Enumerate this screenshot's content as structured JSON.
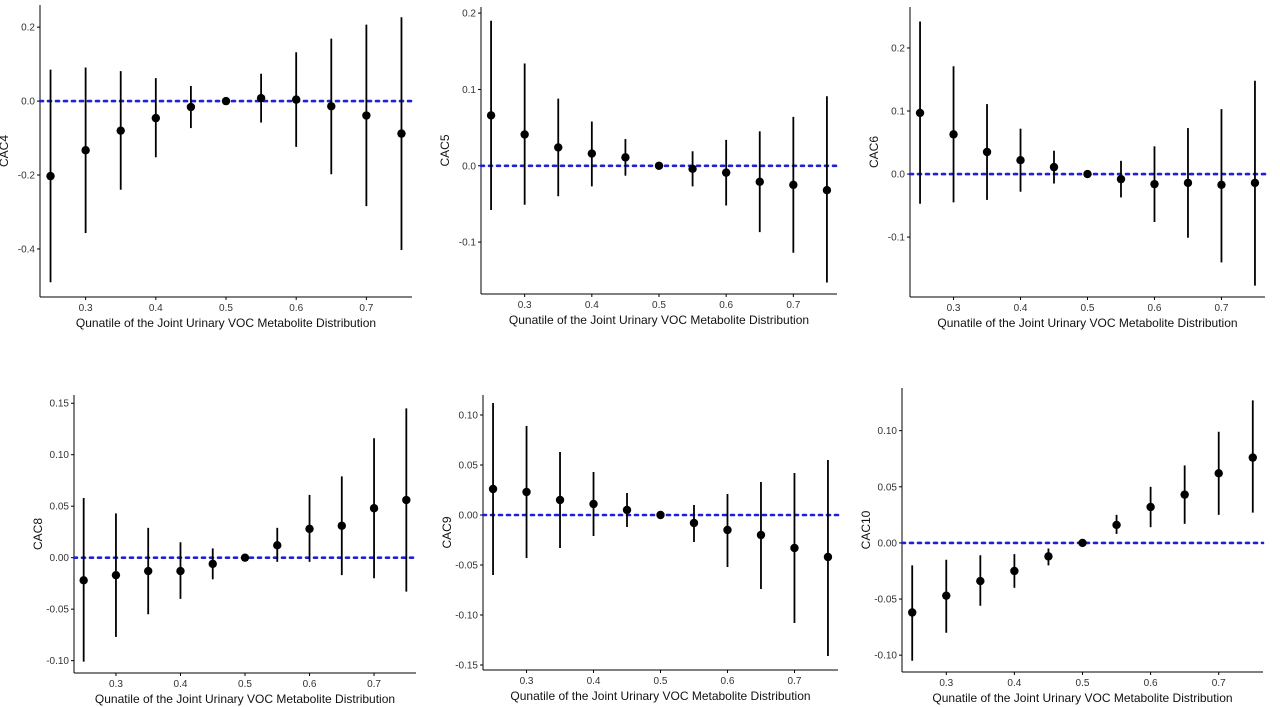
{
  "chart_data": [
    {
      "type": "scatter",
      "ylabel": "CAC4",
      "xlabel": "Qunatile of the Joint Urinary VOC Metabolite Distribution",
      "xlim": [
        0.235,
        0.765
      ],
      "ylim": [
        -0.53,
        0.26
      ],
      "xticks": [
        "0.3",
        "0.4",
        "0.5",
        "0.6",
        "0.7"
      ],
      "yticks": [
        "0.2",
        "0.0",
        "-0.2",
        "-0.4"
      ],
      "reference_line_y": 0,
      "x": [
        0.25,
        0.3,
        0.35,
        0.4,
        0.45,
        0.5,
        0.55,
        0.6,
        0.65,
        0.7,
        0.75
      ],
      "y": [
        -0.203,
        -0.133,
        -0.08,
        -0.046,
        -0.016,
        0.0,
        0.008,
        0.004,
        -0.014,
        -0.039,
        -0.088
      ],
      "lower": [
        -0.49,
        -0.357,
        -0.24,
        -0.152,
        -0.073,
        0.0,
        -0.058,
        -0.124,
        -0.198,
        -0.284,
        -0.403
      ],
      "upper": [
        0.085,
        0.091,
        0.081,
        0.062,
        0.041,
        0.0,
        0.074,
        0.132,
        0.169,
        0.207,
        0.227
      ]
    },
    {
      "type": "scatter",
      "ylabel": "CAC5",
      "xlabel": "Qunatile of the Joint Urinary VOC Metabolite Distribution",
      "xlim": [
        0.235,
        0.765
      ],
      "ylim": [
        -0.168,
        0.208
      ],
      "xticks": [
        "0.3",
        "0.4",
        "0.5",
        "0.6",
        "0.7"
      ],
      "yticks": [
        "0.2",
        "0.1",
        "0.0",
        "-0.1"
      ],
      "reference_line_y": 0,
      "x": [
        0.25,
        0.3,
        0.35,
        0.4,
        0.45,
        0.5,
        0.55,
        0.6,
        0.65,
        0.7,
        0.75
      ],
      "y": [
        0.066,
        0.041,
        0.024,
        0.016,
        0.011,
        0.0,
        -0.004,
        -0.009,
        -0.021,
        -0.025,
        -0.032
      ],
      "lower": [
        -0.058,
        -0.051,
        -0.04,
        -0.027,
        -0.013,
        0.0,
        -0.027,
        -0.052,
        -0.087,
        -0.114,
        -0.153
      ],
      "upper": [
        0.19,
        0.134,
        0.088,
        0.058,
        0.035,
        0.0,
        0.019,
        0.034,
        0.045,
        0.064,
        0.091
      ]
    },
    {
      "type": "scatter",
      "ylabel": "CAC6",
      "xlabel": "Qunatile of the Joint Urinary VOC Metabolite Distribution",
      "xlim": [
        0.235,
        0.765
      ],
      "ylim": [
        -0.195,
        0.265
      ],
      "xticks": [
        "0.3",
        "0.4",
        "0.5",
        "0.6",
        "0.7"
      ],
      "yticks": [
        "0.2",
        "0.1",
        "0.0",
        "-0.1"
      ],
      "reference_line_y": 0,
      "x": [
        0.25,
        0.3,
        0.35,
        0.4,
        0.45,
        0.5,
        0.55,
        0.6,
        0.65,
        0.7,
        0.75
      ],
      "y": [
        0.097,
        0.063,
        0.035,
        0.022,
        0.011,
        0.0,
        -0.008,
        -0.016,
        -0.014,
        -0.017,
        -0.014
      ],
      "lower": [
        -0.047,
        -0.045,
        -0.041,
        -0.028,
        -0.015,
        0.0,
        -0.037,
        -0.076,
        -0.101,
        -0.14,
        -0.177
      ],
      "upper": [
        0.242,
        0.171,
        0.111,
        0.072,
        0.037,
        0.0,
        0.021,
        0.044,
        0.073,
        0.103,
        0.148
      ]
    },
    {
      "type": "scatter",
      "ylabel": "CAC8",
      "xlabel": "Qunatile of the Joint Urinary VOC Metabolite Distribution",
      "xlim": [
        0.235,
        0.765
      ],
      "ylim": [
        -0.112,
        0.158
      ],
      "xticks": [
        "0.3",
        "0.4",
        "0.5",
        "0.6",
        "0.7"
      ],
      "yticks": [
        "0.15",
        "0.10",
        "0.05",
        "0.00",
        "-0.05",
        "-0.10"
      ],
      "reference_line_y": 0,
      "x": [
        0.25,
        0.3,
        0.35,
        0.4,
        0.45,
        0.5,
        0.55,
        0.6,
        0.65,
        0.7,
        0.75
      ],
      "y": [
        -0.022,
        -0.017,
        -0.013,
        -0.013,
        -0.006,
        0.0,
        0.012,
        0.028,
        0.031,
        0.048,
        0.056
      ],
      "lower": [
        -0.101,
        -0.077,
        -0.055,
        -0.04,
        -0.021,
        0.0,
        -0.004,
        -0.004,
        -0.017,
        -0.02,
        -0.033
      ],
      "upper": [
        0.058,
        0.043,
        0.029,
        0.015,
        0.009,
        0.0,
        0.029,
        0.061,
        0.079,
        0.116,
        0.145
      ]
    },
    {
      "type": "scatter",
      "ylabel": "CAC9",
      "xlabel": "Qunatile of the Joint Urinary VOC Metabolite Distribution",
      "xlim": [
        0.235,
        0.765
      ],
      "ylim": [
        -0.155,
        0.12
      ],
      "xticks": [
        "0.3",
        "0.4",
        "0.5",
        "0.6",
        "0.7"
      ],
      "yticks": [
        "0.10",
        "0.05",
        "0.00",
        "-0.05",
        "-0.10",
        "-0.15"
      ],
      "reference_line_y": 0,
      "x": [
        0.25,
        0.3,
        0.35,
        0.4,
        0.45,
        0.5,
        0.55,
        0.6,
        0.65,
        0.7,
        0.75
      ],
      "y": [
        0.026,
        0.023,
        0.015,
        0.011,
        0.005,
        0.0,
        -0.008,
        -0.015,
        -0.02,
        -0.033,
        -0.042
      ],
      "lower": [
        -0.06,
        -0.043,
        -0.033,
        -0.021,
        -0.012,
        0.0,
        -0.027,
        -0.052,
        -0.074,
        -0.108,
        -0.141
      ],
      "upper": [
        0.112,
        0.089,
        0.063,
        0.043,
        0.022,
        0.0,
        0.01,
        0.021,
        0.033,
        0.042,
        0.055
      ]
    },
    {
      "type": "scatter",
      "ylabel": "CAC10",
      "xlabel": "Qunatile of the Joint Urinary VOC Metabolite Distribution",
      "xlim": [
        0.235,
        0.765
      ],
      "ylim": [
        -0.115,
        0.138
      ],
      "xticks": [
        "0.3",
        "0.4",
        "0.5",
        "0.6",
        "0.7"
      ],
      "yticks": [
        "0.10",
        "0.05",
        "0.00",
        "-0.05",
        "-0.10"
      ],
      "reference_line_y": 0,
      "x": [
        0.25,
        0.3,
        0.35,
        0.4,
        0.45,
        0.5,
        0.55,
        0.6,
        0.65,
        0.7,
        0.75
      ],
      "y": [
        -0.062,
        -0.047,
        -0.034,
        -0.025,
        -0.012,
        0.0,
        0.016,
        0.032,
        0.043,
        0.062,
        0.076
      ],
      "lower": [
        -0.105,
        -0.08,
        -0.056,
        -0.04,
        -0.02,
        0.0,
        0.008,
        0.014,
        0.017,
        0.025,
        0.027
      ],
      "upper": [
        -0.02,
        -0.015,
        -0.011,
        -0.01,
        -0.005,
        0.0,
        0.025,
        0.05,
        0.069,
        0.099,
        0.127
      ]
    }
  ],
  "colors": {
    "points": "#000000",
    "reference_line": "#1f1fd6",
    "axis": "#000000"
  }
}
